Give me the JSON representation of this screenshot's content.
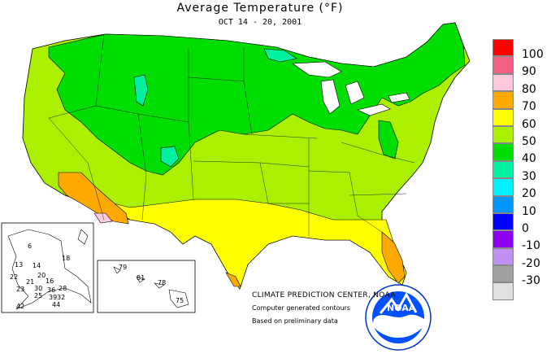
{
  "header": {
    "title": "Average Temperature (°F)",
    "period": "OCT 14 - 20, 2001"
  },
  "legend": {
    "items": [
      {
        "label": "100",
        "color": "#ff0000"
      },
      {
        "label": "90",
        "color": "#f06080"
      },
      {
        "label": "80",
        "color": "#ffc8dc"
      },
      {
        "label": "70",
        "color": "#ffaa00"
      },
      {
        "label": "60",
        "color": "#ffff00"
      },
      {
        "label": "50",
        "color": "#aaf000"
      },
      {
        "label": "40",
        "color": "#00dd00"
      },
      {
        "label": "30",
        "color": "#00f0a0"
      },
      {
        "label": "20",
        "color": "#00f0ff"
      },
      {
        "label": "10",
        "color": "#0096ff"
      },
      {
        "label": "0",
        "color": "#0000ff"
      },
      {
        "label": "-10",
        "color": "#8c00f0"
      },
      {
        "label": "-20",
        "color": "#c090f0"
      },
      {
        "label": "-30",
        "color": "#a0a0a0"
      },
      {
        "label": "",
        "color": "#e0e0e0"
      }
    ]
  },
  "alaska": {
    "values": [
      "6",
      "18",
      "13",
      "14",
      "20",
      "22",
      "21",
      "30",
      "16",
      "23",
      "36",
      "28",
      "25",
      "39",
      "32",
      "42",
      "44"
    ]
  },
  "hawaii": {
    "values": [
      "79",
      "81",
      "78",
      "75"
    ]
  },
  "credits": {
    "org": "CLIMATE PREDICTION CENTER, NOAA",
    "line1": "Computer generated contours",
    "line2": "Based on preliminary data",
    "logo_text": "NOAA"
  }
}
